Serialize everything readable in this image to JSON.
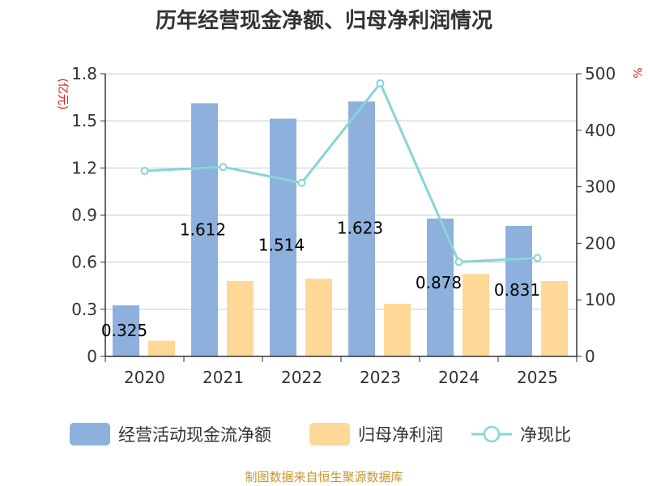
{
  "chart_data": {
    "type": "bar",
    "title": "历年经营现金净额、归母净利润情况",
    "categories": [
      "2020",
      "2021",
      "2022",
      "2023",
      "2024",
      "2025"
    ],
    "series": [
      {
        "name": "经营活动现金流净额",
        "type": "bar",
        "axis": "left",
        "color": "#8eb0dc",
        "values": [
          0.325,
          1.612,
          1.514,
          1.623,
          0.878,
          0.831
        ]
      },
      {
        "name": "归母净利润",
        "type": "bar",
        "axis": "left",
        "color": "#ffd898",
        "values": [
          0.1,
          0.48,
          0.495,
          0.335,
          0.525,
          0.48
        ]
      },
      {
        "name": "净现比",
        "type": "line",
        "axis": "right",
        "color": "#88d4d8",
        "values": [
          328,
          335,
          307,
          483,
          167,
          174
        ]
      }
    ],
    "data_labels": [
      "0.325",
      "1.612",
      "1.514",
      "1.623",
      "0.878",
      "0.831"
    ],
    "y_left": {
      "unit": "(亿元)",
      "ticks": [
        "0",
        "0.3",
        "0.6",
        "0.9",
        "1.2",
        "1.5",
        "1.8"
      ],
      "min": 0,
      "max": 1.8
    },
    "y_right": {
      "unit": "%",
      "ticks": [
        "0",
        "100",
        "200",
        "300",
        "400",
        "500"
      ],
      "min": 0,
      "max": 500
    },
    "grid": true,
    "legend_position": "bottom",
    "source": "制图数据来自恒生聚源数据库"
  }
}
